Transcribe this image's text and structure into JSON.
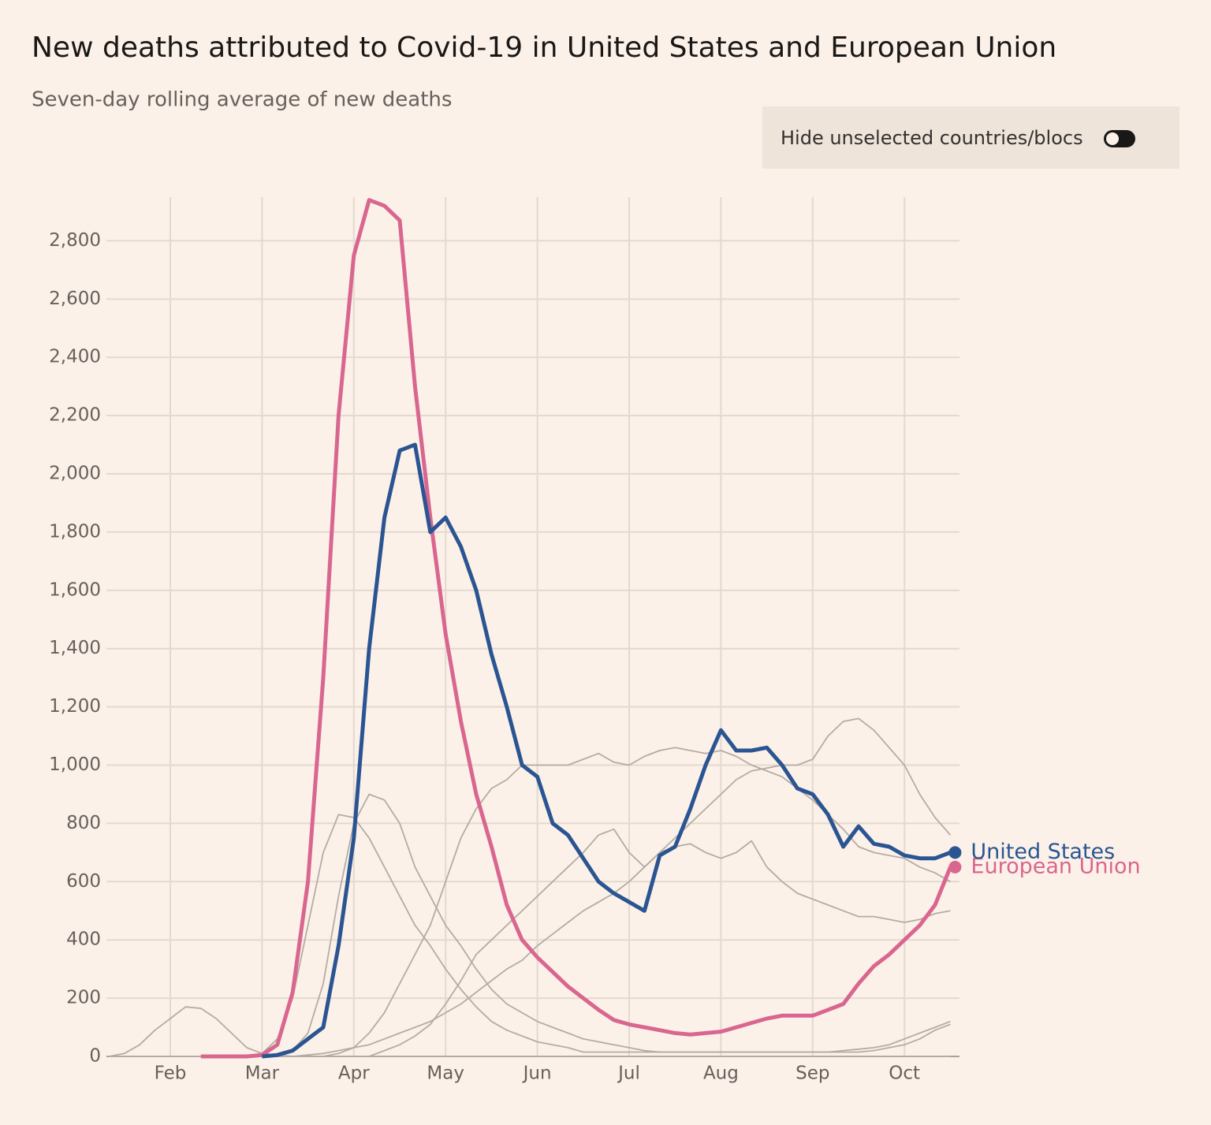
{
  "chart_data": {
    "type": "line",
    "title": "New deaths attributed to Covid-19 in United States and European Union",
    "subtitle": "Seven-day rolling average of new deaths",
    "toggle_label": "Hide unselected countries/blocs",
    "categories": [
      null,
      null,
      null,
      null,
      "Feb",
      null,
      null,
      null,
      null,
      null,
      "Mar",
      null,
      null,
      null,
      null,
      null,
      "Apr",
      null,
      null,
      null,
      null,
      null,
      "May",
      null,
      null,
      null,
      null,
      null,
      "Jun",
      null,
      null,
      null,
      null,
      null,
      "Jul",
      null,
      null,
      null,
      null,
      null,
      "Aug",
      null,
      null,
      null,
      null,
      null,
      "Sep",
      null,
      null,
      null,
      null,
      null,
      "Oct",
      null,
      null,
      null
    ],
    "ylim": [
      0,
      2950
    ],
    "yticks": [
      0,
      200,
      400,
      600,
      800,
      {
        "value": 1000,
        "label": "1,000"
      },
      {
        "value": 1200,
        "label": "1,200"
      },
      {
        "value": 1400,
        "label": "1,400"
      },
      {
        "value": 1600,
        "label": "1,600"
      },
      {
        "value": 1800,
        "label": "1,800"
      },
      {
        "value": 2000,
        "label": "2,000"
      },
      {
        "value": 2200,
        "label": "2,200"
      },
      {
        "value": 2400,
        "label": "2,400"
      },
      {
        "value": 2600,
        "label": "2,600"
      },
      {
        "value": 2800,
        "label": "2,800"
      }
    ],
    "grid": true,
    "series": [
      {
        "color": "#b3aca5",
        "values": [
          0,
          10,
          40,
          90,
          130,
          170,
          165,
          130,
          80,
          30,
          10,
          5,
          0,
          0,
          0,
          0,
          0,
          0,
          0,
          0,
          0,
          0,
          0,
          0,
          0,
          0,
          0,
          0,
          0,
          0,
          0,
          0,
          0,
          0,
          0,
          0,
          0,
          0,
          0,
          0,
          0,
          0,
          0,
          0,
          0,
          0,
          0,
          0,
          0,
          0,
          0,
          0,
          0,
          0,
          0,
          0
        ]
      },
      {
        "color": "#b3aca5",
        "values": [
          0,
          0,
          0,
          0,
          0,
          0,
          0,
          0,
          0,
          0,
          0,
          0,
          0,
          5,
          10,
          20,
          30,
          40,
          60,
          80,
          100,
          120,
          150,
          180,
          220,
          260,
          300,
          330,
          380,
          420,
          460,
          500,
          530,
          560,
          600,
          650,
          700,
          750,
          800,
          850,
          900,
          950,
          980,
          990,
          1000,
          1000,
          1020,
          1100,
          1150,
          1160,
          1120,
          1060,
          1000,
          900,
          820,
          760
        ]
      },
      {
        "color": "#b3aca5",
        "values": [
          0,
          0,
          0,
          0,
          0,
          0,
          0,
          0,
          0,
          0,
          0,
          0,
          0,
          0,
          0,
          10,
          30,
          80,
          150,
          250,
          350,
          450,
          600,
          750,
          850,
          920,
          950,
          1000,
          1000,
          1000,
          1000,
          1020,
          1040,
          1010,
          1000,
          1030,
          1050,
          1060,
          1050,
          1040,
          1050,
          1030,
          1000,
          980,
          960,
          920,
          880,
          830,
          780,
          720,
          700,
          690,
          680,
          650,
          630,
          600
        ]
      },
      {
        "color": "#b3aca5",
        "values": [
          0,
          0,
          0,
          0,
          0,
          0,
          0,
          0,
          0,
          0,
          0,
          0,
          20,
          80,
          250,
          550,
          800,
          900,
          880,
          800,
          650,
          550,
          450,
          380,
          300,
          230,
          180,
          150,
          120,
          100,
          80,
          60,
          50,
          40,
          30,
          20,
          15,
          15,
          15,
          15,
          15,
          15,
          15,
          15,
          15,
          15,
          15,
          15,
          20,
          25,
          30,
          40,
          60,
          80,
          100,
          120
        ]
      },
      {
        "color": "#b3aca5",
        "values": [
          0,
          0,
          0,
          0,
          0,
          0,
          0,
          0,
          0,
          0,
          10,
          60,
          200,
          450,
          700,
          830,
          820,
          750,
          650,
          550,
          450,
          380,
          300,
          230,
          170,
          120,
          90,
          70,
          50,
          40,
          30,
          15,
          15,
          15,
          15,
          15,
          15,
          15,
          15,
          15,
          15,
          15,
          15,
          15,
          15,
          15,
          15,
          15,
          15,
          15,
          20,
          30,
          40,
          60,
          90,
          110
        ]
      },
      {
        "color": "#b3aca5",
        "values": [
          0,
          0,
          0,
          0,
          0,
          0,
          0,
          0,
          0,
          0,
          0,
          0,
          0,
          0,
          0,
          0,
          0,
          0,
          20,
          40,
          70,
          110,
          180,
          260,
          350,
          400,
          450,
          500,
          550,
          600,
          650,
          700,
          760,
          780,
          700,
          650,
          700,
          720,
          730,
          700,
          680,
          700,
          740,
          650,
          600,
          560,
          540,
          520,
          500,
          480,
          480,
          470,
          460,
          470,
          490,
          500
        ]
      },
      {
        "name": "European Union",
        "color": "#d9668f",
        "values": [
          null,
          null,
          null,
          null,
          null,
          null,
          0,
          0,
          0,
          0,
          5,
          40,
          220,
          600,
          1300,
          2200,
          2750,
          2940,
          2920,
          2870,
          2300,
          1850,
          1450,
          1150,
          900,
          720,
          520,
          400,
          340,
          290,
          240,
          200,
          160,
          125,
          110,
          100,
          90,
          80,
          75,
          80,
          85,
          100,
          115,
          130,
          140,
          140,
          140,
          160,
          180,
          250,
          310,
          350,
          400,
          450,
          520,
          650
        ]
      },
      {
        "name": "United States",
        "color": "#2a5592",
        "values": [
          null,
          null,
          null,
          null,
          null,
          null,
          null,
          null,
          null,
          null,
          0,
          5,
          20,
          60,
          100,
          380,
          750,
          1400,
          1850,
          2080,
          2100,
          1800,
          1850,
          1750,
          1600,
          1380,
          1200,
          1000,
          960,
          800,
          760,
          680,
          600,
          560,
          530,
          500,
          690,
          720,
          850,
          1000,
          1120,
          1050,
          1050,
          1060,
          1000,
          920,
          900,
          830,
          720,
          790,
          730,
          720,
          690,
          680,
          680,
          700
        ]
      }
    ]
  }
}
